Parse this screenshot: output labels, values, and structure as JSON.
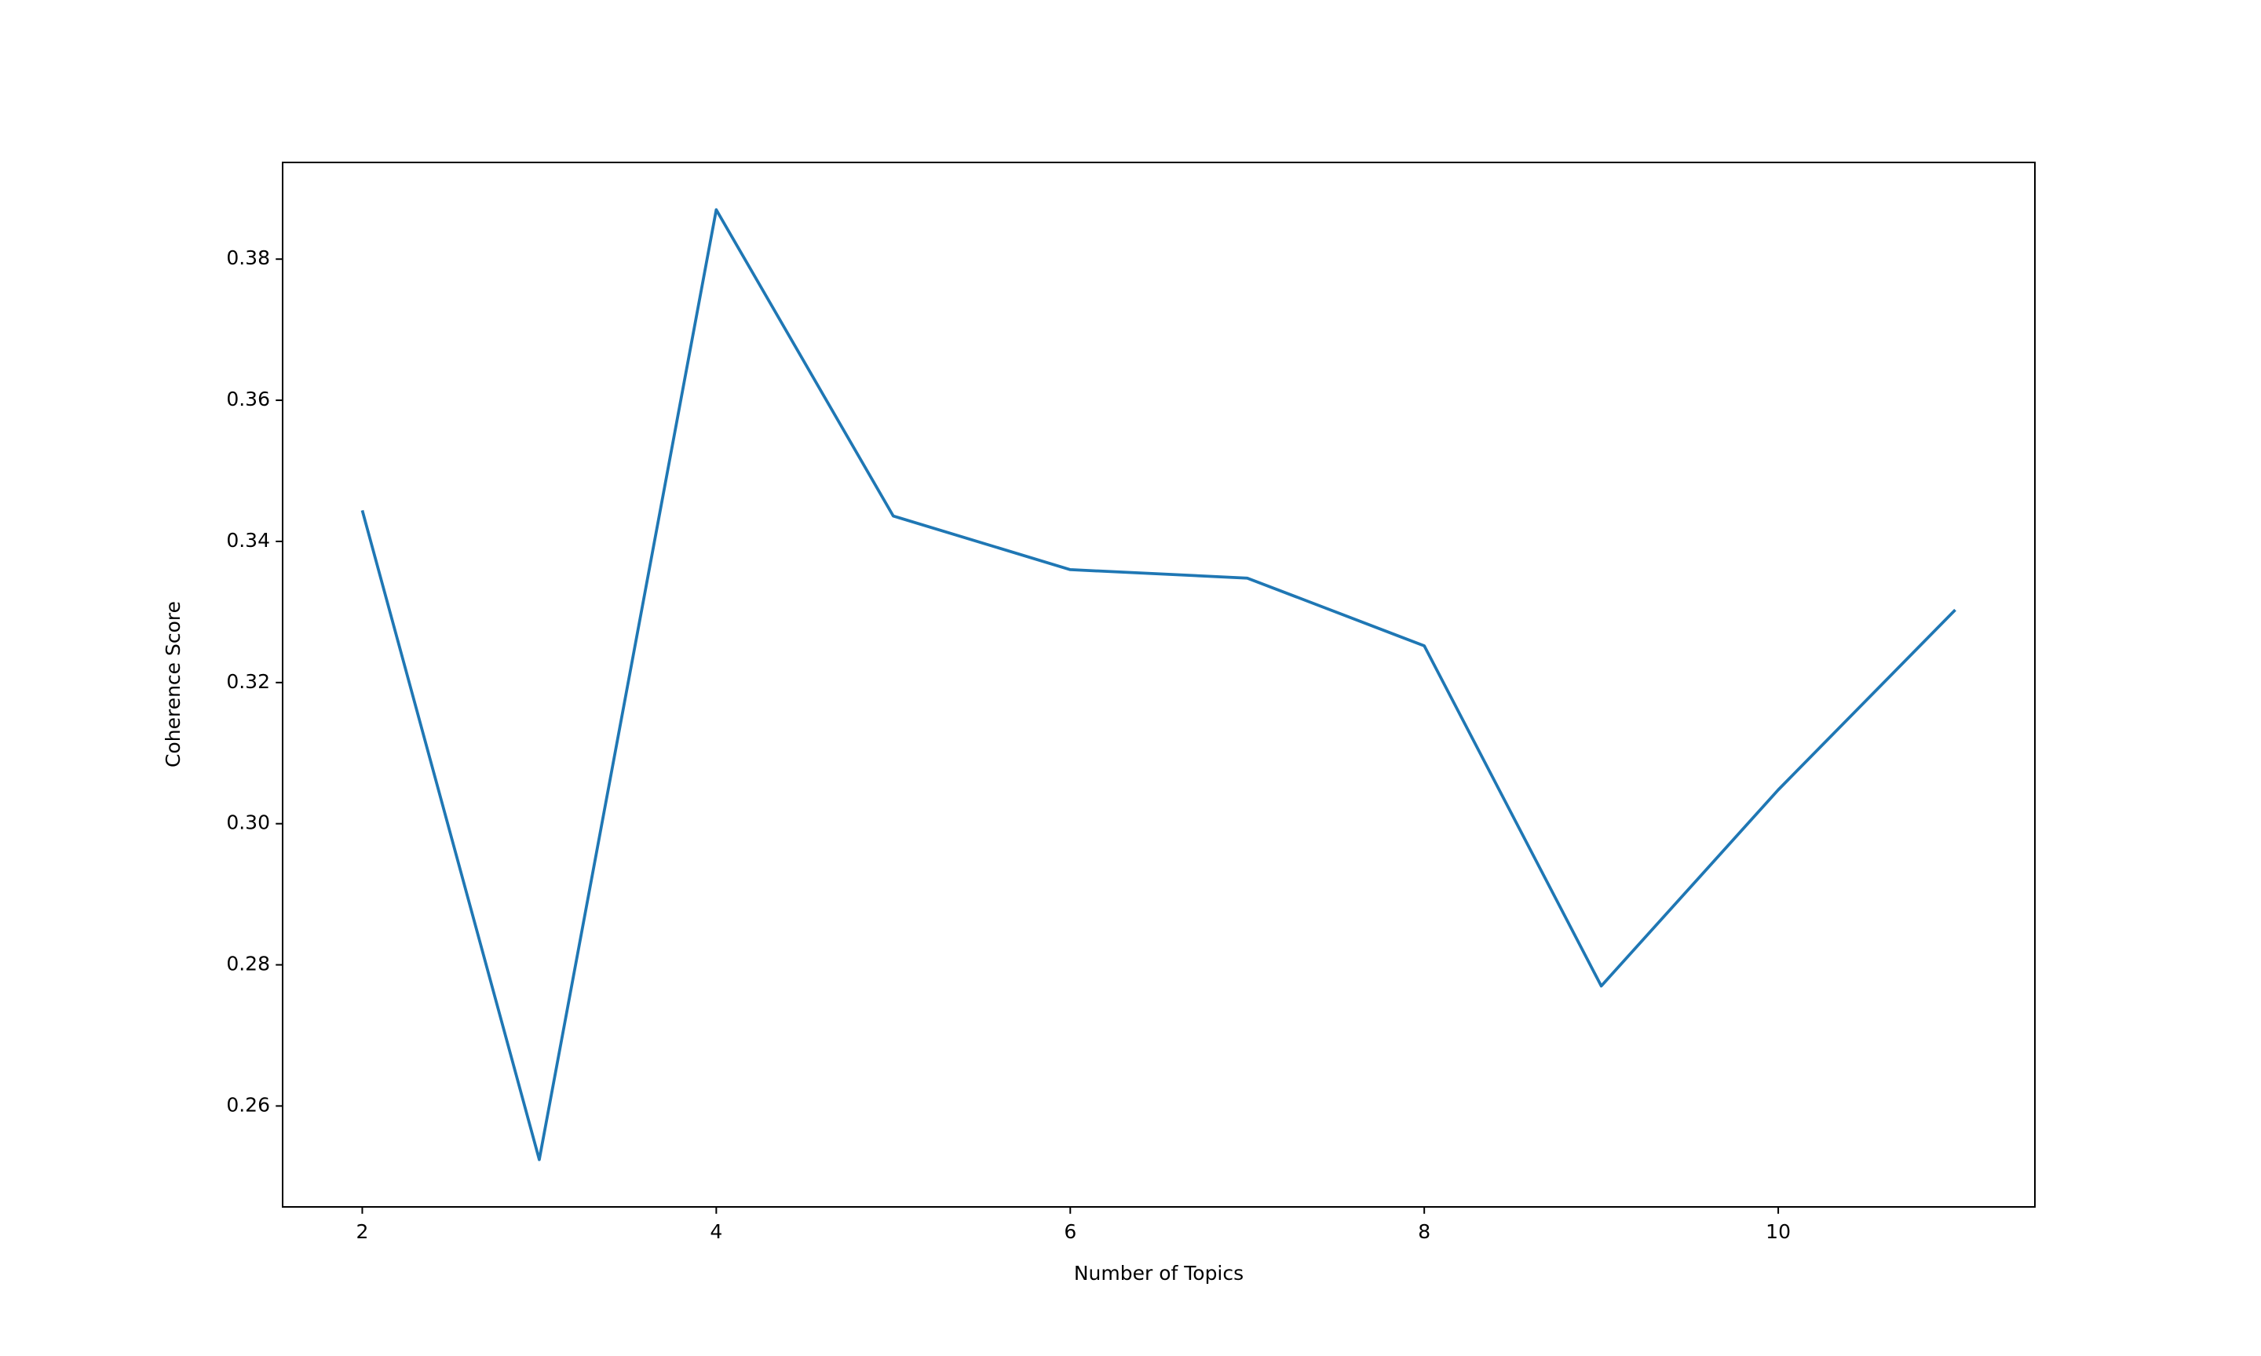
{
  "chart_data": {
    "type": "line",
    "x_label": "Number of Topics",
    "y_label": "Coherence Score",
    "x": [
      2,
      3,
      4,
      5,
      6,
      7,
      8,
      9,
      10,
      11
    ],
    "series": [
      {
        "color": "#1f77b4",
        "values": [
          0.3444,
          0.2524,
          0.387,
          0.3436,
          0.336,
          0.3348,
          0.3252,
          0.277,
          0.3048,
          0.3303
        ]
      }
    ],
    "xlim": [
      1.55,
      11.45
    ],
    "xticks": [
      2,
      4,
      6,
      8,
      10
    ],
    "ylim": [
      0.2457,
      0.3937
    ],
    "yticks": [
      0.26,
      0.28,
      {
        "value": 0.3,
        "label": "0.30"
      },
      0.32,
      0.34,
      0.36,
      0.38
    ],
    "grid": false
  }
}
